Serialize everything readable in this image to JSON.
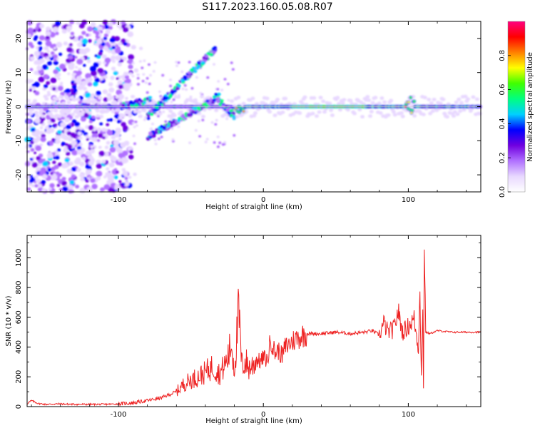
{
  "title": "S117.2023.160.05.08.R07",
  "chart_data": [
    {
      "type": "heatmap",
      "xlabel": "Height of straight line (km)",
      "ylabel": "Frequency (Hz)",
      "xlim": [
        -163,
        150
      ],
      "ylim": [
        -25,
        25
      ],
      "xticks": [
        -100,
        0,
        100
      ],
      "yticks": [
        -20,
        -10,
        0,
        10,
        20
      ],
      "colorbar": {
        "label": "Normalized spectral amplitude",
        "ticks": [
          "0.0",
          "0.2",
          "0.4",
          "0.6",
          "0.8"
        ],
        "range": [
          0,
          1
        ],
        "colors": [
          "#ffffff",
          "#e8d8ff",
          "#b070ff",
          "#7000e0",
          "#0000ff",
          "#00d0ff",
          "#00ff80",
          "#40ff00",
          "#ffff00",
          "#ff8000",
          "#ff0000",
          "#ff0080"
        ]
      },
      "features": [
        {
          "name": "main band",
          "x_range": [
            -163,
            150
          ],
          "freq": 0,
          "amplitude": "0.3-0.9"
        },
        {
          "name": "upper branch",
          "x_range": [
            -80,
            -33
          ],
          "freq_range": [
            -5,
            17
          ]
        },
        {
          "name": "lower branch",
          "x_range": [
            -80,
            -30
          ],
          "freq_range": [
            -9,
            3
          ]
        },
        {
          "name": "broadband noise",
          "x_range": [
            -163,
            -95
          ],
          "freq_range": [
            -25,
            25
          ]
        }
      ]
    },
    {
      "type": "line",
      "xlabel": "Height of straight line (km)",
      "ylabel": "SNR (10 * v/v)",
      "xlim": [
        -163,
        150
      ],
      "ylim": [
        0,
        1150
      ],
      "xticks": [
        -100,
        0,
        100
      ],
      "yticks": [
        0,
        200,
        400,
        600,
        800,
        1000
      ],
      "color": "#ee2222",
      "series": [
        {
          "x": [
            -163,
            -160,
            -155,
            -150,
            -140,
            -130,
            -120,
            -110,
            -100,
            -90,
            -80,
            -70,
            -60,
            -55,
            -50,
            -45,
            -40,
            -35,
            -30,
            -25,
            -22,
            -20,
            -17,
            -15,
            -12,
            -10,
            -7,
            -5,
            -2,
            0,
            3,
            5,
            8,
            10,
            13,
            15,
            18,
            20,
            25,
            30,
            40,
            50,
            60,
            70,
            75,
            80,
            83,
            86,
            90,
            93,
            96,
            100,
            104,
            107,
            108,
            109,
            110,
            110.5,
            111,
            112,
            115,
            120,
            130,
            140,
            150
          ],
          "y": [
            20,
            40,
            20,
            15,
            18,
            15,
            15,
            15,
            18,
            25,
            40,
            60,
            100,
            150,
            180,
            200,
            230,
            270,
            220,
            310,
            420,
            250,
            640,
            280,
            300,
            260,
            280,
            320,
            300,
            330,
            310,
            460,
            360,
            380,
            340,
            400,
            420,
            440,
            470,
            490,
            490,
            500,
            490,
            500,
            510,
            480,
            560,
            500,
            520,
            640,
            500,
            540,
            590,
            380,
            830,
            200,
            640,
            120,
            1120,
            500,
            490,
            510,
            500,
            500,
            500
          ]
        }
      ]
    }
  ]
}
